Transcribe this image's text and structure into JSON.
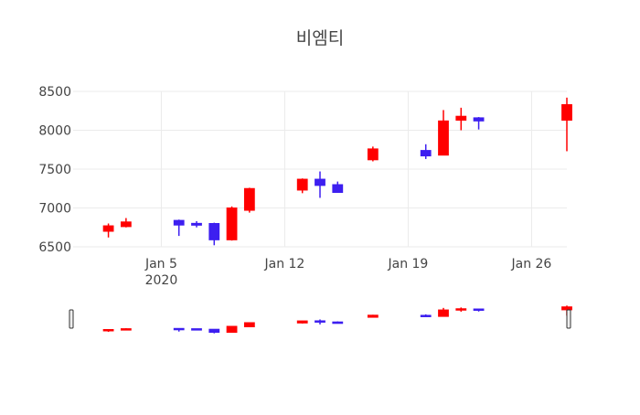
{
  "chart_data": {
    "type": "candlestick",
    "title": "비엠티",
    "xlabel": "",
    "ylabel": "",
    "ylim": [
      6500,
      8500
    ],
    "yticks": [
      6500,
      7000,
      7500,
      8000,
      8500
    ],
    "xlim": [
      "2019-12-31",
      "2020-01-28"
    ],
    "xticks": [
      {
        "date": "2020-01-05",
        "label": "Jan 5",
        "sublabel": "2020"
      },
      {
        "date": "2020-01-12",
        "label": "Jan 12",
        "sublabel": ""
      },
      {
        "date": "2020-01-19",
        "label": "Jan 19",
        "sublabel": ""
      },
      {
        "date": "2020-01-26",
        "label": "Jan 26",
        "sublabel": ""
      }
    ],
    "grid": true,
    "increasing_color": "#ff0000",
    "decreasing_color": "#3d1ff0",
    "rangeslider": true,
    "candles": [
      {
        "date": "2020-01-02",
        "open": 6700,
        "high": 6800,
        "low": 6620,
        "close": 6770
      },
      {
        "date": "2020-01-03",
        "open": 6760,
        "high": 6870,
        "low": 6750,
        "close": 6820
      },
      {
        "date": "2020-01-06",
        "open": 6840,
        "high": 6850,
        "low": 6640,
        "close": 6780
      },
      {
        "date": "2020-01-07",
        "open": 6800,
        "high": 6830,
        "low": 6750,
        "close": 6780
      },
      {
        "date": "2020-01-08",
        "open": 6800,
        "high": 6810,
        "low": 6520,
        "close": 6590
      },
      {
        "date": "2020-01-09",
        "open": 6590,
        "high": 7020,
        "low": 6580,
        "close": 7000
      },
      {
        "date": "2020-01-10",
        "open": 6970,
        "high": 7260,
        "low": 6940,
        "close": 7250
      },
      {
        "date": "2020-01-13",
        "open": 7230,
        "high": 7380,
        "low": 7190,
        "close": 7370
      },
      {
        "date": "2020-01-14",
        "open": 7370,
        "high": 7470,
        "low": 7130,
        "close": 7290
      },
      {
        "date": "2020-01-15",
        "open": 7300,
        "high": 7340,
        "low": 7200,
        "close": 7200
      },
      {
        "date": "2020-01-17",
        "open": 7620,
        "high": 7790,
        "low": 7600,
        "close": 7760
      },
      {
        "date": "2020-01-20",
        "open": 7740,
        "high": 7820,
        "low": 7630,
        "close": 7670
      },
      {
        "date": "2020-01-21",
        "open": 7680,
        "high": 8260,
        "low": 7680,
        "close": 8120
      },
      {
        "date": "2020-01-22",
        "open": 8130,
        "high": 8290,
        "low": 8000,
        "close": 8180
      },
      {
        "date": "2020-01-23",
        "open": 8160,
        "high": 8170,
        "low": 8010,
        "close": 8120
      },
      {
        "date": "2020-01-28",
        "open": 8130,
        "high": 8420,
        "low": 7730,
        "close": 8330
      }
    ]
  }
}
